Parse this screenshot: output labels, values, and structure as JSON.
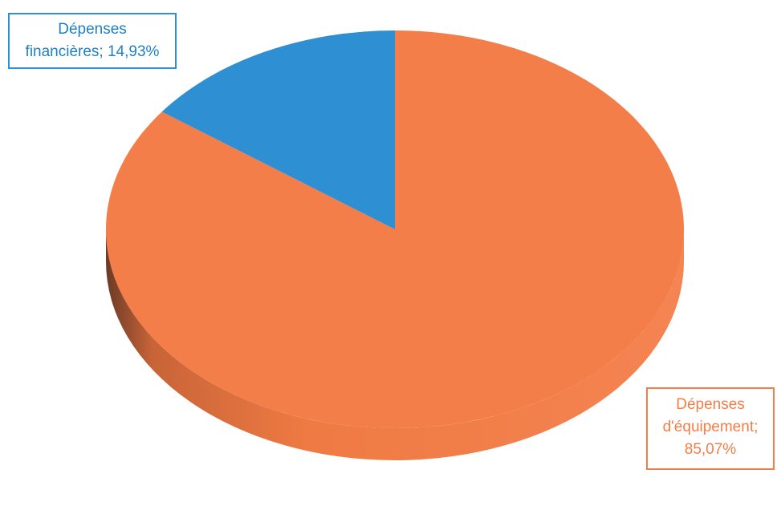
{
  "colors": {
    "equipement": "#F47E49",
    "equipement_side": "#EF7A43",
    "equipement_shadow": "#9E4A2A",
    "financieres": "#2E8FD3",
    "background": "#FFFFFF"
  },
  "labels": {
    "financieres": {
      "line1": "Dépenses",
      "line2": "financières; 14,93%"
    },
    "equipement": {
      "line1": "Dépenses",
      "line2": "d'équipement;",
      "line3": "85,07%"
    }
  },
  "chart_data": {
    "type": "pie",
    "style": "3d",
    "title": "",
    "slices": [
      {
        "label": "Dépenses d'équipement",
        "value": 85.07,
        "color": "#F47E49"
      },
      {
        "label": "Dépenses financières",
        "value": 14.93,
        "color": "#2E8FD3"
      }
    ],
    "value_format": "percent",
    "start_angle_deg": 0,
    "direction": "clockwise",
    "legend": "none"
  }
}
